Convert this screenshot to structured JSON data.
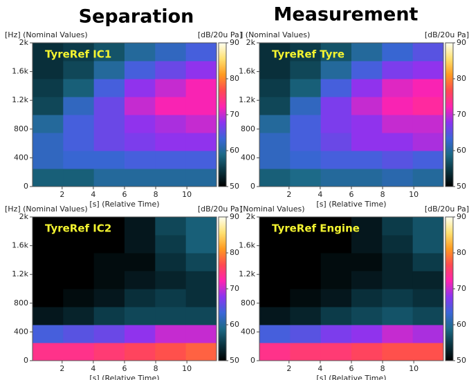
{
  "headings": [
    "Separation",
    "Measurement"
  ],
  "chart_data": [
    {
      "type": "heatmap",
      "annotation": "TyreRef IC1",
      "y_label": "[Hz] (Nominal Values)",
      "x_label": "[s] (Relative Time)",
      "z_label": "[dB/20u Pa]",
      "xlim": [
        0.1,
        11.9
      ],
      "xticks": [
        2,
        4,
        6,
        8,
        10
      ],
      "ylim": [
        0,
        2000
      ],
      "yticks": [
        0,
        400,
        800,
        {
          "value": 1200,
          "label": "1.2k"
        },
        {
          "value": 1600,
          "label": "1.6k"
        },
        {
          "value": 2000,
          "label": "2k"
        }
      ],
      "zlim": [
        50,
        90
      ],
      "zticks": [
        50,
        60,
        70,
        80,
        90
      ],
      "colormap": [
        "#000000",
        "#0a3440",
        "#1c6a86",
        "#3a66d8",
        "#8a34f0",
        "#ff22b0",
        "#ff4a50",
        "#ff9a20",
        "#ffe070",
        "#fffff0"
      ],
      "z": [
        [
          58,
          58,
          60,
          60,
          60,
          60
        ],
        [
          62,
          63,
          63,
          64,
          64,
          64
        ],
        [
          62,
          64,
          66,
          67,
          68,
          68
        ],
        [
          60,
          64,
          66,
          68,
          69,
          70
        ],
        [
          56,
          62,
          66,
          70,
          72,
          72
        ],
        [
          55,
          58,
          64,
          68,
          70,
          72
        ],
        [
          54,
          56,
          60,
          64,
          66,
          68
        ],
        [
          54,
          55,
          57,
          60,
          62,
          64
        ]
      ]
    },
    {
      "type": "heatmap",
      "annotation": "TyreRef Tyre",
      "y_label": "] (Nominal Values)",
      "x_label": "[s] (Relative Time)",
      "z_label": "[dB/20u Pa]",
      "xlim": [
        0.1,
        11.9
      ],
      "xticks": [
        2,
        4,
        6,
        8,
        10
      ],
      "ylim": [
        0,
        2000
      ],
      "yticks": [
        0,
        400,
        800,
        {
          "value": 1200,
          "label": "1.2k"
        },
        {
          "value": 1600,
          "label": "1.6k"
        },
        {
          "value": 2000,
          "label": "2k"
        }
      ],
      "zlim": [
        50,
        90
      ],
      "zticks": [
        50,
        60,
        70,
        80,
        90
      ],
      "colormap": [
        "#000000",
        "#0a3440",
        "#1c6a86",
        "#3a66d8",
        "#8a34f0",
        "#ff22b0",
        "#ff4a50",
        "#ff9a20",
        "#ffe070",
        "#fffff0"
      ],
      "z": [
        [
          58,
          59,
          60,
          60,
          61,
          60
        ],
        [
          62,
          63,
          64,
          64,
          65,
          64
        ],
        [
          62,
          64,
          66,
          68,
          68,
          69
        ],
        [
          60,
          64,
          67,
          68,
          70,
          70
        ],
        [
          56,
          62,
          67,
          70,
          72,
          73
        ],
        [
          55,
          58,
          64,
          68,
          71,
          72
        ],
        [
          54,
          56,
          60,
          64,
          67,
          68
        ],
        [
          54,
          55,
          57,
          60,
          63,
          65
        ]
      ]
    },
    {
      "type": "heatmap",
      "annotation": "TyreRef IC2",
      "y_label": "[Hz] (Nominal Values)",
      "x_label": "[s] (Relative Time)",
      "z_label": "[dB/20u Pa]",
      "xlim": [
        0.1,
        11.9
      ],
      "xticks": [
        2,
        4,
        6,
        8,
        10
      ],
      "ylim": [
        0,
        2000
      ],
      "yticks": [
        0,
        400,
        800,
        {
          "value": 1200,
          "label": "1.2k"
        },
        {
          "value": 1600,
          "label": "1.6k"
        },
        {
          "value": 2000,
          "label": "2k"
        }
      ],
      "zlim": [
        50,
        90
      ],
      "zticks": [
        50,
        60,
        70,
        80,
        90
      ],
      "colormap": [
        "#000000",
        "#0a3440",
        "#1c6a86",
        "#3a66d8",
        "#8a34f0",
        "#ff22b0",
        "#ff4a50",
        "#ff9a20",
        "#ffe070",
        "#fffff0"
      ],
      "z": [
        [
          74,
          74,
          75,
          76,
          77,
          78
        ],
        [
          64,
          65,
          66,
          68,
          70,
          70
        ],
        [
          52,
          53,
          55,
          56,
          56,
          56
        ],
        [
          50,
          51,
          52,
          54,
          55,
          54
        ],
        [
          50,
          50,
          51,
          52,
          53,
          54
        ],
        [
          50,
          50,
          51,
          51,
          54,
          56
        ],
        [
          50,
          50,
          50,
          52,
          55,
          58
        ],
        [
          50,
          50,
          50,
          52,
          56,
          58
        ]
      ]
    },
    {
      "type": "heatmap",
      "annotation": "TyreRef Engine",
      "y_label": "(Nominal Values)",
      "x_label": "[s] (Relative Time)",
      "z_label": "[dB/20u Pa]",
      "xlim": [
        0.1,
        11.9
      ],
      "xticks": [
        2,
        4,
        6,
        8,
        10
      ],
      "ylim": [
        0,
        2000
      ],
      "yticks": [
        0,
        400,
        800,
        {
          "value": 1200,
          "label": "1.2k"
        },
        {
          "value": 1600,
          "label": "1.6k"
        },
        {
          "value": 2000,
          "label": "2k"
        }
      ],
      "zlim": [
        50,
        90
      ],
      "zticks": [
        50,
        60,
        70,
        80,
        90
      ],
      "colormap": [
        "#000000",
        "#0a3440",
        "#1c6a86",
        "#3a66d8",
        "#8a34f0",
        "#ff22b0",
        "#ff4a50",
        "#ff9a20",
        "#ffe070",
        "#fffff0"
      ],
      "z": [
        [
          74,
          75,
          75,
          76,
          77,
          77
        ],
        [
          64,
          65,
          67,
          68,
          70,
          69
        ],
        [
          52,
          53,
          55,
          56,
          57,
          56
        ],
        [
          50,
          51,
          52,
          54,
          55,
          54
        ],
        [
          50,
          50,
          51,
          52,
          53,
          53
        ],
        [
          50,
          50,
          51,
          51,
          53,
          55
        ],
        [
          50,
          50,
          50,
          52,
          54,
          57
        ],
        [
          50,
          50,
          50,
          52,
          55,
          57
        ]
      ]
    }
  ]
}
